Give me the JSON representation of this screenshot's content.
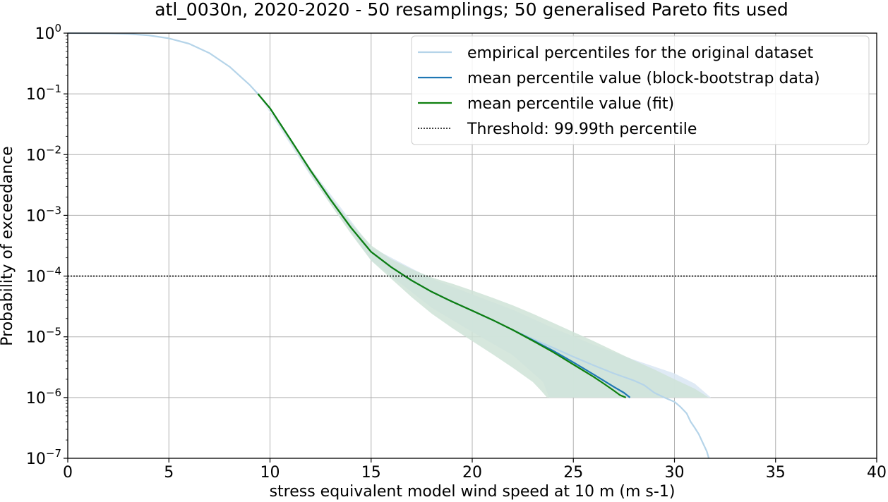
{
  "chart_data": {
    "type": "line",
    "title": "atl_0030n, 2020-2020 - 50 resamplings; 50 generalised Pareto fits used",
    "xlabel": "stress equivalent model wind speed at 10 m (m s-1)",
    "ylabel": "Probability of exceedance",
    "xlim": [
      0,
      40
    ],
    "ylim": [
      1e-07,
      1
    ],
    "yscale": "log",
    "grid": true,
    "legend_position": "top-right",
    "x_ticks": [
      0,
      5,
      10,
      15,
      20,
      25,
      30,
      35,
      40
    ],
    "x_tick_labels": [
      "0",
      "5",
      "10",
      "15",
      "20",
      "25",
      "30",
      "35",
      "40"
    ],
    "y_ticks": [
      {
        "base": "10",
        "exp": "0",
        "value": 1
      },
      {
        "base": "10",
        "exp": "−1",
        "value": 0.1
      },
      {
        "base": "10",
        "exp": "−2",
        "value": 0.01
      },
      {
        "base": "10",
        "exp": "−3",
        "value": 0.001
      },
      {
        "base": "10",
        "exp": "−4",
        "value": 0.0001
      },
      {
        "base": "10",
        "exp": "−5",
        "value": 1e-05
      },
      {
        "base": "10",
        "exp": "−6",
        "value": 1e-06
      },
      {
        "base": "10",
        "exp": "−7",
        "value": 1e-07
      }
    ],
    "series": [
      {
        "name": "empirical percentiles for the original dataset",
        "color": "#b5d4e9",
        "x": [
          0,
          1,
          2,
          3,
          4,
          5,
          6,
          7,
          8,
          9,
          9.4,
          10,
          11,
          12,
          13,
          14,
          15,
          16,
          17,
          18,
          19,
          20,
          21,
          22,
          23,
          24,
          25,
          26,
          27,
          28,
          28.5,
          29,
          29.5,
          30,
          30.3,
          30.6,
          30.8,
          31,
          31.2,
          31.4,
          31.6,
          31.7
        ],
        "y": [
          1,
          0.998,
          0.99,
          0.97,
          0.92,
          0.82,
          0.67,
          0.47,
          0.28,
          0.14,
          0.1,
          0.058,
          0.018,
          0.0055,
          0.0018,
          0.00063,
          0.00025,
          0.00014,
          8.5e-05,
          5.5e-05,
          3.8e-05,
          2.7e-05,
          1.9e-05,
          1.3e-05,
          9.2e-06,
          6.6e-06,
          4.7e-06,
          3.4e-06,
          2.5e-06,
          1.9e-06,
          1.6e-06,
          1.2e-06,
          1e-06,
          8.5e-07,
          7e-07,
          5.5e-07,
          4e-07,
          3.2e-07,
          2.5e-07,
          1.8e-07,
          1.3e-07,
          1e-07
        ]
      },
      {
        "name": "mean percentile value (block-bootstrap data)",
        "color": "#1f77b4",
        "x": [
          9.4,
          10,
          11,
          12,
          13,
          14,
          15,
          16,
          17,
          18,
          19,
          20,
          21,
          22,
          23,
          24,
          25,
          26,
          26.5,
          27,
          27.5,
          27.8
        ],
        "y": [
          0.1,
          0.058,
          0.018,
          0.0055,
          0.0018,
          0.00063,
          0.00025,
          0.00014,
          8.5e-05,
          5.5e-05,
          3.8e-05,
          2.7e-05,
          1.9e-05,
          1.3e-05,
          8.8e-06,
          5.9e-06,
          3.8e-06,
          2.4e-06,
          1.9e-06,
          1.5e-06,
          1.2e-06,
          1e-06
        ]
      },
      {
        "name": "mean percentile value (fit)",
        "color": "#0f800f",
        "x": [
          9.4,
          10,
          11,
          12,
          13,
          14,
          15,
          16,
          17,
          18,
          19,
          20,
          21,
          22,
          23,
          24,
          25,
          26,
          26.5,
          27,
          27.3,
          27.6
        ],
        "y": [
          0.1,
          0.058,
          0.018,
          0.0055,
          0.0018,
          0.00063,
          0.00025,
          0.00014,
          8.5e-05,
          5.5e-05,
          3.8e-05,
          2.7e-05,
          1.9e-05,
          1.3e-05,
          8.6e-06,
          5.6e-06,
          3.5e-06,
          2.2e-06,
          1.7e-06,
          1.3e-06,
          1.1e-06,
          1e-06
        ]
      },
      {
        "name": "Threshold: 99.99th percentile",
        "color": "#000000",
        "style": "dotted",
        "x": [
          0,
          40
        ],
        "y": [
          0.0001,
          0.0001
        ]
      }
    ],
    "bands": [
      {
        "color": "#dce8f4",
        "upper": {
          "x": [
            9.4,
            12,
            15,
            18,
            20,
            22,
            24,
            26,
            28,
            30,
            31,
            31.8
          ],
          "y": [
            0.1,
            0.006,
            0.0003,
            9e-05,
            5e-05,
            2.8e-05,
            1.4e-05,
            7.4e-06,
            4.2e-06,
            2.5e-06,
            1.7e-06,
            1e-06
          ]
        },
        "lower": {
          "x": [
            9.4,
            12,
            15,
            18,
            20,
            22,
            23.5,
            23.8
          ],
          "y": [
            0.1,
            0.0045,
            0.00018,
            3e-05,
            1.2e-05,
            5e-06,
            1.8e-06,
            1e-06
          ]
        }
      },
      {
        "color": "#cfe3d7",
        "upper": {
          "x": [
            9.4,
            10,
            11,
            12,
            13,
            14,
            15,
            16,
            17,
            18,
            19,
            20,
            21,
            22,
            23,
            24,
            25,
            26,
            27,
            28,
            29,
            30,
            31,
            31.7
          ],
          "y": [
            0.1,
            0.06,
            0.019,
            0.006,
            0.002,
            0.00075,
            0.00032,
            0.00019,
            0.00013,
            9.5e-05,
            7.5e-05,
            5.8e-05,
            4.4e-05,
            3.3e-05,
            2.4e-05,
            1.7e-05,
            1.2e-05,
            8.5e-06,
            5.9e-06,
            4.1e-06,
            2.9e-06,
            2e-06,
            1.4e-06,
            1e-06
          ]
        },
        "lower": {
          "x": [
            9.4,
            10,
            11,
            12,
            13,
            14,
            15,
            16,
            17,
            18,
            19,
            20,
            21,
            22,
            23,
            23.4,
            23.7
          ],
          "y": [
            0.1,
            0.055,
            0.016,
            0.0047,
            0.0015,
            0.0005,
            0.00018,
            9e-05,
            4.5e-05,
            2.4e-05,
            1.4e-05,
            8.5e-06,
            5.2e-06,
            3.1e-06,
            1.8e-06,
            1.3e-06,
            1e-06
          ]
        }
      }
    ]
  }
}
